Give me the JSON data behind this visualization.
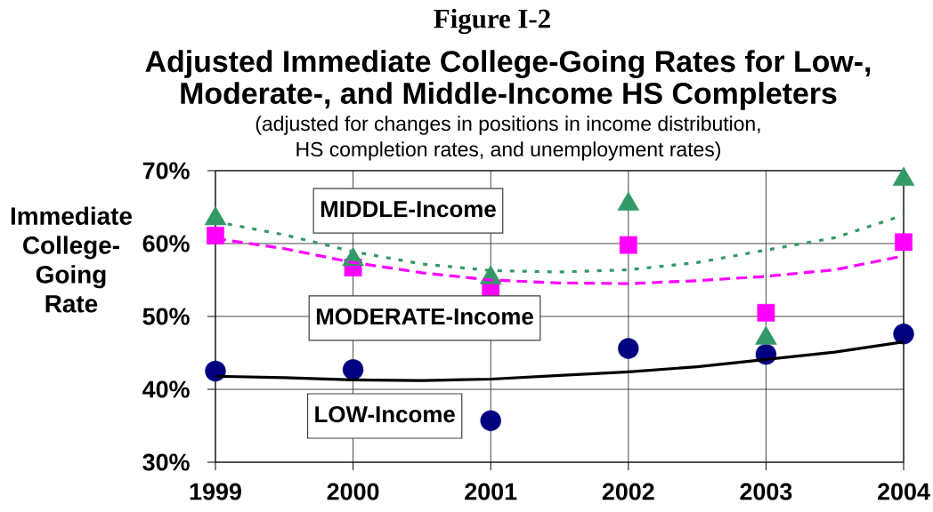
{
  "chart_data": {
    "type": "scatter",
    "annotations": [
      "Figure I-2"
    ],
    "title": "Adjusted Immediate College-Going Rates for Low-, Moderate-, and Middle-Income HS Completers",
    "subtitle": "(adjusted for changes in positions in income distribution, HS completion rates, and unemployment rates)",
    "ylabel": "Immediate College-Going Rate",
    "x": [
      1999,
      2000,
      2001,
      2002,
      2003,
      2004
    ],
    "xlim": [
      1999,
      2004
    ],
    "xticks": [
      1999,
      2000,
      2001,
      2002,
      2003,
      2004
    ],
    "ylim": [
      30,
      70
    ],
    "yticks": [
      {
        "value": 30,
        "label": "30%"
      },
      {
        "value": 40,
        "label": "40%"
      },
      {
        "value": 50,
        "label": "50%"
      },
      {
        "value": 60,
        "label": "60%"
      },
      {
        "value": 70,
        "label": "70%"
      }
    ],
    "grid": true,
    "series": [
      {
        "name": "LOW-Income",
        "marker": "circle",
        "color": "#000080",
        "values": [
          42.5,
          42.7,
          35.7,
          45.6,
          44.8,
          47.6
        ]
      },
      {
        "name": "MODERATE-Income",
        "marker": "square",
        "color": "#ff00ff",
        "values": [
          61.1,
          56.7,
          53.8,
          59.8,
          50.5,
          60.2
        ]
      },
      {
        "name": "MIDDLE-Income",
        "marker": "triangle",
        "color": "#339966",
        "values": [
          63.4,
          57.8,
          55.3,
          65.4,
          47.0,
          68.8
        ]
      },
      {
        "type": "line",
        "marker": "none",
        "line_style": "solid",
        "color": "#000000",
        "x": [
          1999,
          1999.5,
          2000,
          2000.5,
          2001,
          2001.5,
          2002,
          2002.5,
          2003,
          2003.5,
          2004
        ],
        "values": [
          41.8,
          41.6,
          41.3,
          41.2,
          41.4,
          41.9,
          42.4,
          43.1,
          44.1,
          45.1,
          46.5
        ]
      },
      {
        "type": "line",
        "marker": "none",
        "line_style": "dashed",
        "color": "#ff00ff",
        "x": [
          1999,
          1999.5,
          2000,
          2000.5,
          2001,
          2001.5,
          2002,
          2002.5,
          2003,
          2003.5,
          2004
        ],
        "values": [
          60.7,
          59.3,
          57.4,
          56.0,
          55.0,
          54.6,
          54.5,
          54.9,
          55.5,
          56.4,
          58.3
        ]
      },
      {
        "type": "line",
        "marker": "none",
        "line_style": "dotted",
        "color": "#339966",
        "x": [
          1999,
          1999.5,
          2000,
          2000.5,
          2001,
          2001.5,
          2002,
          2002.5,
          2003,
          2003.5,
          2004
        ],
        "values": [
          63.0,
          61.2,
          58.9,
          57.2,
          56.3,
          56.1,
          56.4,
          57.4,
          59.1,
          60.8,
          63.9
        ]
      }
    ]
  }
}
